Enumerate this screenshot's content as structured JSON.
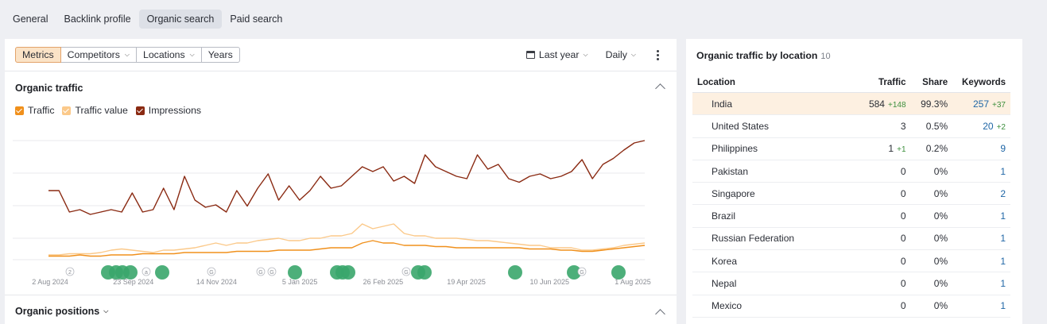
{
  "tabs": [
    "General",
    "Backlink profile",
    "Organic search",
    "Paid search"
  ],
  "active_tab": 2,
  "toolbar": {
    "segments": [
      "Metrics",
      "Competitors",
      "Locations",
      "Years"
    ],
    "date_range": "Last year",
    "granularity": "Daily"
  },
  "organic_traffic": {
    "title": "Organic traffic",
    "legend": [
      {
        "label": "Traffic",
        "color": "#f0901c"
      },
      {
        "label": "Traffic value",
        "color": "#fbc98a"
      },
      {
        "label": "Impressions",
        "color": "#8a2a12"
      }
    ]
  },
  "organic_positions": {
    "title": "Organic positions"
  },
  "chart_data": {
    "type": "line",
    "x_ticks": [
      "2 Aug 2024",
      "23 Sep 2024",
      "14 Nov 2024",
      "5 Jan 2025",
      "26 Feb 2025",
      "19 Apr 2025",
      "10 Jun 2025",
      "1 Aug 2025"
    ],
    "grid": true,
    "series": [
      {
        "name": "Impressions",
        "color": "#8a2a12",
        "values": [
          58,
          58,
          40,
          42,
          38,
          40,
          42,
          40,
          56,
          40,
          42,
          60,
          42,
          70,
          50,
          44,
          46,
          40,
          58,
          45,
          60,
          72,
          50,
          62,
          50,
          58,
          70,
          60,
          62,
          70,
          78,
          74,
          78,
          66,
          70,
          64,
          88,
          78,
          74,
          70,
          68,
          88,
          76,
          80,
          68,
          65,
          70,
          72,
          68,
          70,
          74,
          84,
          68,
          80,
          85,
          92,
          98,
          100
        ]
      },
      {
        "name": "Traffic value",
        "color": "#fbc98a",
        "values": [
          4,
          4,
          5,
          5,
          5,
          6,
          8,
          9,
          8,
          7,
          6,
          8,
          8,
          9,
          10,
          12,
          14,
          12,
          14,
          14,
          16,
          17,
          18,
          16,
          16,
          18,
          18,
          20,
          20,
          22,
          30,
          26,
          28,
          30,
          22,
          20,
          20,
          18,
          18,
          18,
          17,
          16,
          16,
          15,
          14,
          13,
          12,
          12,
          10,
          10,
          10,
          8,
          8,
          9,
          10,
          12,
          13,
          14
        ]
      },
      {
        "name": "Traffic",
        "color": "#f0901c",
        "values": [
          3,
          3,
          3,
          4,
          3,
          3,
          4,
          4,
          4,
          5,
          5,
          5,
          5,
          6,
          6,
          6,
          6,
          6,
          7,
          7,
          7,
          7,
          8,
          8,
          8,
          8,
          9,
          10,
          10,
          10,
          14,
          16,
          14,
          14,
          12,
          12,
          12,
          11,
          11,
          10,
          10,
          10,
          10,
          10,
          10,
          10,
          9,
          9,
          9,
          8,
          8,
          7,
          7,
          8,
          9,
          10,
          11,
          12
        ]
      }
    ],
    "annotation_markers": [
      "2",
      "a",
      "G",
      "G",
      "G",
      "G",
      "G"
    ]
  },
  "location_table": {
    "title": "Organic traffic by location",
    "count": "10",
    "headers": [
      "Location",
      "Traffic",
      "Share",
      "Keywords"
    ],
    "rows": [
      {
        "location": "India",
        "traffic": "584",
        "traffic_delta": "+148",
        "share": "99.3%",
        "keywords": "257",
        "keywords_delta": "+37"
      },
      {
        "location": "United States",
        "traffic": "3",
        "traffic_delta": "",
        "share": "0.5%",
        "keywords": "20",
        "keywords_delta": "+2"
      },
      {
        "location": "Philippines",
        "traffic": "1",
        "traffic_delta": "+1",
        "share": "0.2%",
        "keywords": "9",
        "keywords_delta": ""
      },
      {
        "location": "Pakistan",
        "traffic": "0",
        "traffic_delta": "",
        "share": "0%",
        "keywords": "1",
        "keywords_delta": ""
      },
      {
        "location": "Singapore",
        "traffic": "0",
        "traffic_delta": "",
        "share": "0%",
        "keywords": "2",
        "keywords_delta": ""
      },
      {
        "location": "Brazil",
        "traffic": "0",
        "traffic_delta": "",
        "share": "0%",
        "keywords": "1",
        "keywords_delta": ""
      },
      {
        "location": "Russian Federation",
        "traffic": "0",
        "traffic_delta": "",
        "share": "0%",
        "keywords": "1",
        "keywords_delta": ""
      },
      {
        "location": "Korea",
        "traffic": "0",
        "traffic_delta": "",
        "share": "0%",
        "keywords": "1",
        "keywords_delta": ""
      },
      {
        "location": "Nepal",
        "traffic": "0",
        "traffic_delta": "",
        "share": "0%",
        "keywords": "1",
        "keywords_delta": ""
      },
      {
        "location": "Mexico",
        "traffic": "0",
        "traffic_delta": "",
        "share": "0%",
        "keywords": "1",
        "keywords_delta": ""
      }
    ]
  }
}
